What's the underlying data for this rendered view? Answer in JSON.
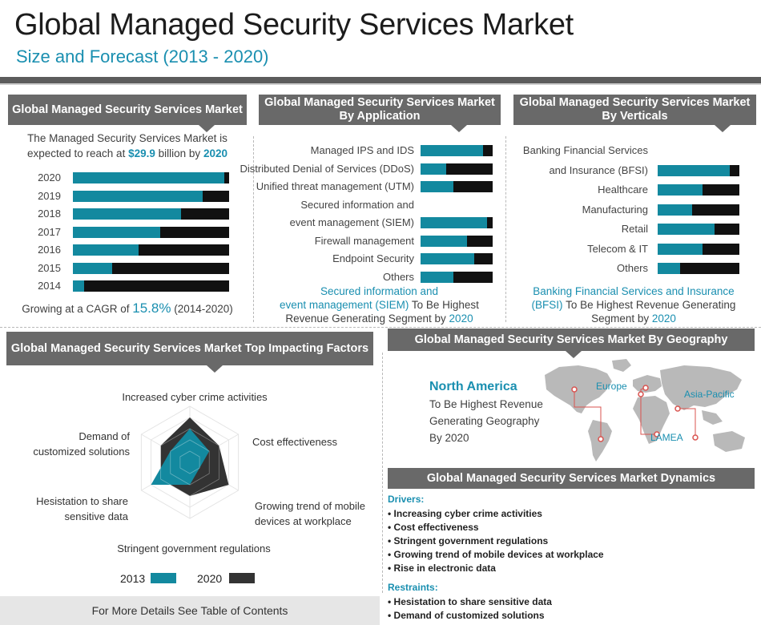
{
  "title": "Global Managed Security Services Market",
  "subtitle": "Size and Forecast (2013 - 2020)",
  "colors": {
    "accent": "#13899f",
    "dark": "#111111",
    "header": "#696969"
  },
  "panel_market": {
    "header": "Global Managed Security Services Market",
    "intro_line1": "The Managed Security Services Market is",
    "intro_pre": "expected to reach at",
    "intro_value": "$29.9",
    "intro_mid": "billion by",
    "intro_year": "2020",
    "cagr_pre": "Growing at a CAGR of",
    "cagr_value": "15.8%",
    "cagr_post": "(2014-2020)"
  },
  "panel_application": {
    "header": "Global Managed Security Services Market By Application",
    "note_teal1": "Secured information and",
    "note_teal2": "event management (SIEM)",
    "note_rest2": "To Be Highest",
    "note_line3": "Revenue Generating Segment by",
    "note_year": "2020"
  },
  "panel_verticals": {
    "header": "Global Managed Security Services Market By Verticals",
    "note_teal1": "Banking Financial Services and Insurance",
    "note_teal2": "(BFSI)",
    "note_rest2": "To Be Highest Revenue Generating",
    "note_line3": "Segment by",
    "note_year": "2020"
  },
  "panel_factors": {
    "header": "Global Managed Security Services Market  Top Impacting Factors",
    "legend_2013": "2013",
    "legend_2020": "2020"
  },
  "panel_geo": {
    "header": "Global Managed Security Services Market By Geography",
    "highlight": "North America",
    "line1": "To Be Highest Revenue",
    "line2": "Generating Geography",
    "line3": "By 2020",
    "labels": {
      "europe": "Europe",
      "asia": "Asia-Pacific",
      "lamea": "LAMEA"
    }
  },
  "panel_dynamics": {
    "header": "Global Managed Security Services Market Dynamics",
    "drivers_title": "Drivers:",
    "drivers": [
      "• Increasing cyber crime activities",
      "• Cost effectiveness",
      "• Stringent government regulations",
      "• Growing trend of mobile devices at workplace",
      "• Rise in electronic data"
    ],
    "restraints_title": "Restraints:",
    "restraints": [
      "• Hesistation to share sensitive data",
      "• Demand of customized solutions"
    ]
  },
  "footer": "For More Details See Table of Contents",
  "chart_data": [
    {
      "type": "bar",
      "title": "Global Managed Security Services Market",
      "categories": [
        "2020",
        "2019",
        "2018",
        "2017",
        "2016",
        "2015",
        "2014"
      ],
      "values": [
        0.97,
        0.83,
        0.69,
        0.56,
        0.42,
        0.25,
        0.07
      ]
    },
    {
      "type": "bar",
      "title": "Global Managed Security Services Market By Application",
      "categories": [
        "Managed IPS and IDS",
        "Distributed Denial of Services (DDoS)",
        "Unified threat management (UTM)",
        "Secured information and event management (SIEM)",
        "Firewall management",
        "Endpoint Security",
        "Others"
      ],
      "label_lines": [
        [
          "Managed IPS and IDS"
        ],
        [
          "Distributed Denial of Services (DDoS)"
        ],
        [
          "Unified threat management (UTM)"
        ],
        [
          "Secured information and",
          "event management (SIEM)"
        ],
        [
          "Firewall management"
        ],
        [
          "Endpoint Security"
        ],
        [
          "Others"
        ]
      ],
      "values": [
        0.87,
        0.36,
        0.46,
        0.92,
        0.64,
        0.74,
        0.45
      ]
    },
    {
      "type": "bar",
      "title": "Global Managed Security Services Market By Verticals",
      "categories": [
        "Banking Financial Services and Insurance (BFSI)",
        "Healthcare",
        "Manufacturing",
        "Retail",
        "Telecom & IT",
        "Others"
      ],
      "label_lines": [
        [
          "Banking Financial Services",
          "and Insurance (BFSI)"
        ],
        [
          "Healthcare"
        ],
        [
          "Manufacturing"
        ],
        [
          "Retail"
        ],
        [
          "Telecom & IT"
        ],
        [
          "Others"
        ]
      ],
      "values": [
        0.88,
        0.55,
        0.42,
        0.7,
        0.55,
        0.27
      ]
    },
    {
      "type": "radar",
      "title": "Global Managed Security Services Market  Top Impacting Factors",
      "axes": [
        "Increased cyber crime activities",
        "Cost effectiveness",
        "Growing trend of mobile devices at workplace",
        "Stringent government regulations",
        "Hesistation to share sensitive data",
        "Demand of customized solutions"
      ],
      "axis_label_lines": [
        [
          "Increased cyber crime activities"
        ],
        [
          "Cost effectiveness"
        ],
        [
          "Growing trend of mobile",
          "devices at workplace"
        ],
        [
          "Stringent government regulations"
        ],
        [
          "Hesistation to share",
          "sensitive data"
        ],
        [
          "Demand of",
          "customized solutions"
        ]
      ],
      "series": [
        {
          "name": "2013",
          "values": [
            3,
            2,
            1,
            2,
            4,
            2
          ]
        },
        {
          "name": "2020",
          "values": [
            4,
            3,
            4,
            3,
            3,
            3
          ]
        }
      ],
      "rmax": 5
    }
  ]
}
